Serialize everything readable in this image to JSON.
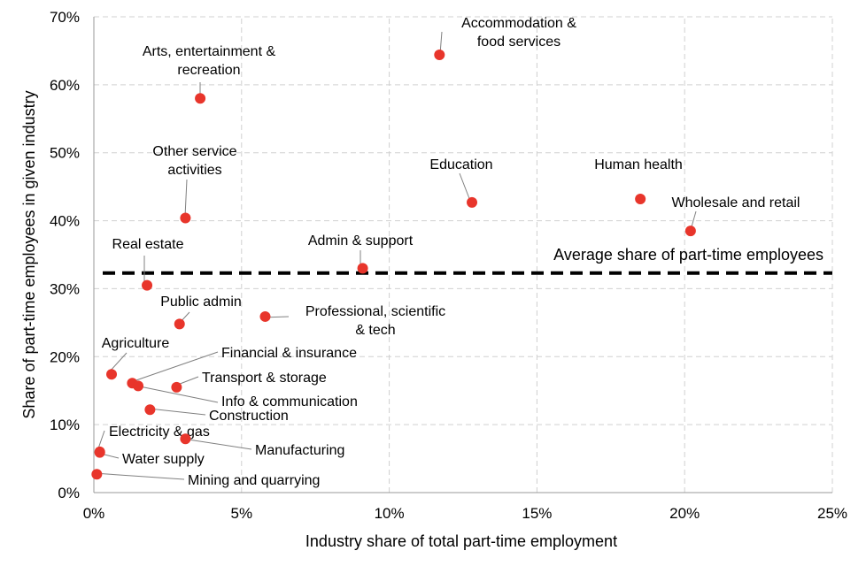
{
  "chart_data": {
    "type": "scatter",
    "xlabel": "Industry share of total part-time employment",
    "ylabel": "Share of part-time employees in given industry",
    "xlim": [
      0,
      25
    ],
    "ylim": [
      0,
      70
    ],
    "x_ticks": [
      "0%",
      "5%",
      "10%",
      "15%",
      "20%",
      "25%"
    ],
    "y_ticks": [
      "0%",
      "10%",
      "20%",
      "30%",
      "40%",
      "50%",
      "60%",
      "70%"
    ],
    "grid": true,
    "marker_color": "#e8352b",
    "average_line": {
      "label": "Average share of part-time employees",
      "y": 32.3
    },
    "points": [
      {
        "name": "Accommodation & food services",
        "label_lines": [
          "Accommodation &",
          "food services"
        ],
        "x": 11.7,
        "y": 64.4
      },
      {
        "name": "Arts, entertainment & recreation",
        "label_lines": [
          "Arts, entertainment &",
          "recreation"
        ],
        "x": 3.6,
        "y": 58.0
      },
      {
        "name": "Other service activities",
        "label_lines": [
          "Other service",
          "activities"
        ],
        "x": 3.1,
        "y": 40.4
      },
      {
        "name": "Education",
        "label_lines": [
          "Education"
        ],
        "x": 12.8,
        "y": 42.7
      },
      {
        "name": "Human health",
        "label_lines": [
          "Human health"
        ],
        "x": 18.5,
        "y": 43.2
      },
      {
        "name": "Wholesale and retail",
        "label_lines": [
          "Wholesale and retail"
        ],
        "x": 20.2,
        "y": 38.5
      },
      {
        "name": "Real estate",
        "label_lines": [
          "Real estate"
        ],
        "x": 1.8,
        "y": 30.5
      },
      {
        "name": "Admin & support",
        "label_lines": [
          "Admin & support"
        ],
        "x": 9.1,
        "y": 33.0
      },
      {
        "name": "Public admin",
        "label_lines": [
          "Public admin"
        ],
        "x": 2.9,
        "y": 24.8
      },
      {
        "name": "Professional, scientific & tech",
        "label_lines": [
          "Professional, scientific",
          "& tech"
        ],
        "x": 5.8,
        "y": 25.9
      },
      {
        "name": "Agriculture",
        "label_lines": [
          "Agriculture"
        ],
        "x": 0.6,
        "y": 17.4
      },
      {
        "name": "Financial & insurance",
        "label_lines": [
          "Financial & insurance"
        ],
        "x": 1.3,
        "y": 16.1
      },
      {
        "name": "Info & communication",
        "label_lines": [
          "Info & communication"
        ],
        "x": 1.5,
        "y": 15.7
      },
      {
        "name": "Transport & storage",
        "label_lines": [
          "Transport & storage"
        ],
        "x": 2.8,
        "y": 15.5
      },
      {
        "name": "Construction",
        "label_lines": [
          "Construction"
        ],
        "x": 1.9,
        "y": 12.2
      },
      {
        "name": "Electricity & gas",
        "label_lines": [
          "Electricity & gas"
        ],
        "x": 0.2,
        "y": 6.0
      },
      {
        "name": "Water supply",
        "label_lines": [
          "Water supply"
        ],
        "x": 0.2,
        "y": 5.9
      },
      {
        "name": "Manufacturing",
        "label_lines": [
          "Manufacturing"
        ],
        "x": 3.1,
        "y": 7.9
      },
      {
        "name": "Mining and quarrying",
        "label_lines": [
          "Mining and quarrying"
        ],
        "x": 0.1,
        "y": 2.7
      }
    ]
  }
}
